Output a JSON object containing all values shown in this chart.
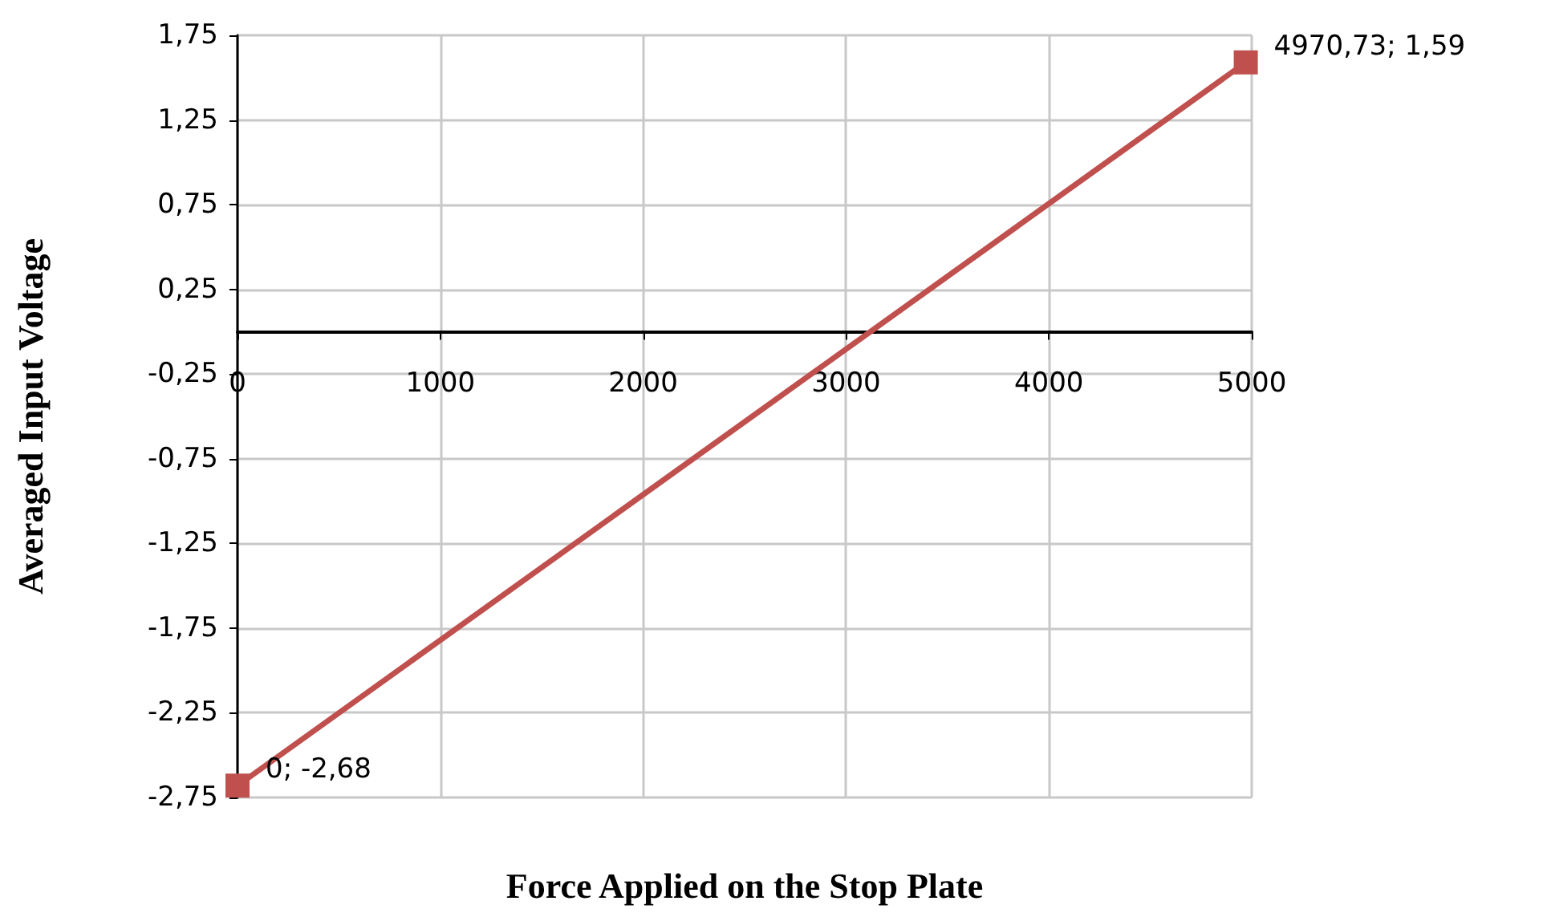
{
  "chart_data": {
    "type": "line",
    "xlabel": "Force Applied on the Stop Plate",
    "ylabel": "Averaged Input Voltage",
    "series": [
      {
        "color": "#c0504d",
        "x": [
          0,
          4970.73
        ],
        "values": [
          -2.68,
          1.59
        ],
        "value_labels": [
          "0; -2,68",
          "4970,73; 1,59"
        ]
      }
    ],
    "xlim": [
      0,
      5000
    ],
    "xticks": [
      0,
      1000,
      2000,
      3000,
      4000,
      5000
    ],
    "ylim": [
      -2.75,
      1.75
    ],
    "yticks": [
      {
        "value": -2.75,
        "label": "-2,75"
      },
      {
        "value": -2.25,
        "label": "-2,25"
      },
      {
        "value": -1.75,
        "label": "-1,75"
      },
      {
        "value": -1.25,
        "label": "-1,25"
      },
      {
        "value": -0.75,
        "label": "-0,75"
      },
      {
        "value": -0.25,
        "label": "-0,25"
      },
      {
        "value": 0.25,
        "label": "0,25"
      },
      {
        "value": 0.75,
        "label": "0,75"
      },
      {
        "value": 1.25,
        "label": "1,25"
      },
      {
        "value": 1.75,
        "label": "1,75"
      }
    ],
    "grid": true,
    "marker": "square",
    "line_style": "solid"
  }
}
